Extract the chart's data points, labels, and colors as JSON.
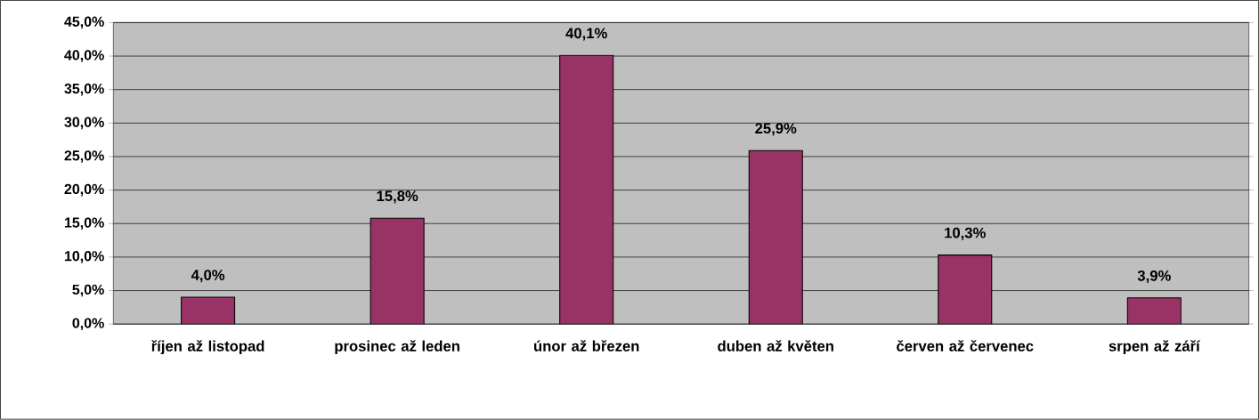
{
  "chart_data": {
    "type": "bar",
    "categories": [
      "říjen až listopad",
      "prosinec až leden",
      "únor až březen",
      "duben až květen",
      "červen až červenec",
      "srpen až září"
    ],
    "values": [
      4.0,
      15.8,
      40.1,
      25.9,
      10.3,
      3.9
    ],
    "value_labels": [
      "4,0%",
      "15,8%",
      "40,1%",
      "25,9%",
      "10,3%",
      "3,9%"
    ],
    "color": "#993366",
    "ylim": [
      0,
      45
    ],
    "yticks": [
      {
        "value": 0,
        "label": "0,0%"
      },
      {
        "value": 5,
        "label": "5,0%"
      },
      {
        "value": 10,
        "label": "10,0%"
      },
      {
        "value": 15,
        "label": "15,0%"
      },
      {
        "value": 20,
        "label": "20,0%"
      },
      {
        "value": 25,
        "label": "25,0%"
      },
      {
        "value": 30,
        "label": "30,0%"
      },
      {
        "value": 35,
        "label": "35,0%"
      },
      {
        "value": 40,
        "label": "40,0%"
      },
      {
        "value": 45,
        "label": "45,0%"
      }
    ],
    "grid": "y"
  }
}
